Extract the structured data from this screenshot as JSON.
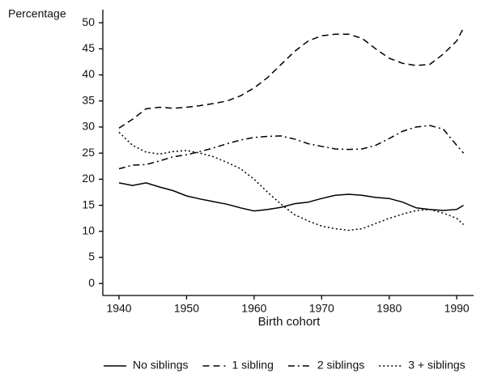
{
  "chart_data": {
    "type": "line",
    "y_label": "Percentage",
    "x_label": "Birth cohort",
    "x": [
      1940,
      1942,
      1944,
      1946,
      1948,
      1950,
      1952,
      1954,
      1956,
      1958,
      1960,
      1962,
      1964,
      1966,
      1968,
      1970,
      1972,
      1974,
      1976,
      1978,
      1980,
      1982,
      1984,
      1986,
      1988,
      1990,
      1991
    ],
    "series": [
      {
        "name": "No siblings",
        "color": "#000000",
        "dash": "solid",
        "values": [
          19.3,
          18.8,
          19.3,
          18.5,
          17.8,
          16.8,
          16.2,
          15.7,
          15.2,
          14.5,
          13.9,
          14.2,
          14.6,
          15.3,
          15.6,
          16.3,
          16.9,
          17.1,
          16.9,
          16.5,
          16.3,
          15.6,
          14.5,
          14.2,
          14.0,
          14.2,
          15.0
        ]
      },
      {
        "name": "1 sibling",
        "color": "#000000",
        "dash": "dashed",
        "values": [
          29.8,
          31.5,
          33.5,
          33.8,
          33.6,
          33.8,
          34.1,
          34.5,
          35.0,
          36.0,
          37.5,
          39.5,
          42.0,
          44.5,
          46.5,
          47.5,
          47.8,
          47.8,
          47.0,
          45.0,
          43.2,
          42.2,
          41.8,
          42.0,
          44.0,
          46.5,
          49.0
        ]
      },
      {
        "name": "2 siblings",
        "color": "#000000",
        "dash": "dashdot",
        "values": [
          22.0,
          22.7,
          22.8,
          23.5,
          24.3,
          24.7,
          25.3,
          26.0,
          26.8,
          27.5,
          28.0,
          28.2,
          28.3,
          27.7,
          26.8,
          26.3,
          25.8,
          25.7,
          25.8,
          26.5,
          27.8,
          29.2,
          30.0,
          30.3,
          29.6,
          26.5,
          25.0
        ]
      },
      {
        "name": "3 + siblings",
        "color": "#000000",
        "dash": "dotted",
        "values": [
          29.0,
          26.5,
          25.2,
          24.8,
          25.3,
          25.5,
          25.0,
          24.3,
          23.2,
          22.0,
          20.0,
          17.5,
          15.2,
          13.2,
          12.0,
          11.0,
          10.5,
          10.2,
          10.5,
          11.5,
          12.5,
          13.3,
          14.0,
          14.2,
          13.5,
          12.5,
          11.3
        ]
      }
    ],
    "xlim": [
      1937.6,
      1992.5
    ],
    "xticks": [
      1940,
      1950,
      1960,
      1970,
      1980,
      1990
    ],
    "ylim": [
      -2.3,
      52.5
    ],
    "yticks": [
      0,
      5,
      10,
      15,
      20,
      25,
      30,
      35,
      40,
      45,
      50
    ],
    "grid": false,
    "legend": "bottom"
  }
}
